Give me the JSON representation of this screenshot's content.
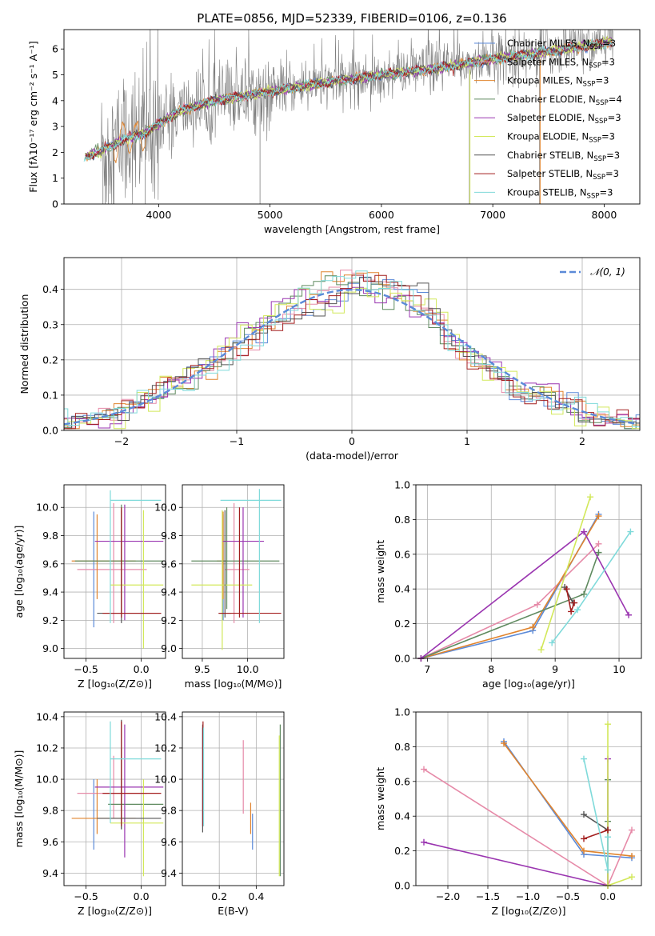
{
  "figure": {
    "title": "PLATE=0856, MJD=52339, FIBERID=0106, z=0.136"
  },
  "colors": {
    "series": [
      "#5b8ad8",
      "#e68aa8",
      "#e0842e",
      "#5f8a5f",
      "#9a35b0",
      "#d2e85a",
      "#555555",
      "#a31e1e",
      "#7fdada"
    ],
    "data": "#7f7f7f",
    "normal": "#5b8ad8",
    "grid": "#b0b0b0"
  },
  "chart_data": [
    {
      "id": "spectrum",
      "type": "line",
      "xlabel": "wavelength [Angstrom, rest frame]",
      "ylabel": "Flux [fλ10⁻¹⁷ erg cm⁻² s⁻¹ A⁻¹]",
      "xlim": [
        3150,
        8320
      ],
      "ylim": [
        0,
        6.75
      ],
      "xticks": [
        4000,
        5000,
        6000,
        7000,
        8000
      ],
      "yticks": [
        0,
        1,
        2,
        3,
        4,
        5,
        6
      ],
      "legend_position": "right",
      "legend": [
        {
          "label": "Chabrier MILES, N",
          "sub": "SSP",
          "suffix": "=3"
        },
        {
          "label": "Salpeter MILES, N",
          "sub": "SSP",
          "suffix": "=3"
        },
        {
          "label": "Kroupa MILES, N",
          "sub": "SSP",
          "suffix": "=3"
        },
        {
          "label": "Chabrier ELODIE, N",
          "sub": "SSP",
          "suffix": "=4"
        },
        {
          "label": "Salpeter ELODIE, N",
          "sub": "SSP",
          "suffix": "=3"
        },
        {
          "label": "Kroupa ELODIE, N",
          "sub": "SSP",
          "suffix": "=3"
        },
        {
          "label": "Chabrier STELIB, N",
          "sub": "SSP",
          "suffix": "=3"
        },
        {
          "label": "Salpeter STELIB, N",
          "sub": "SSP",
          "suffix": "=3"
        },
        {
          "label": "Kroupa STELIB, N",
          "sub": "SSP",
          "suffix": "=3"
        }
      ],
      "model_continuum": {
        "x": [
          3330,
          3500,
          3700,
          3900,
          4000,
          4200,
          4500,
          5000,
          5500,
          6000,
          6500,
          7000,
          7500,
          8000,
          8070
        ],
        "y": [
          1.8,
          2.1,
          2.5,
          2.8,
          3.1,
          3.6,
          4.0,
          4.35,
          4.7,
          5.0,
          5.25,
          5.6,
          5.9,
          6.2,
          6.3
        ]
      }
    },
    {
      "id": "residuals",
      "type": "histogram",
      "xlabel": "(data-model)/error",
      "ylabel": "Normed distribution",
      "xlim": [
        -2.5,
        2.5
      ],
      "ylim": [
        0,
        0.49
      ],
      "xticks": [
        -2,
        -1,
        0,
        1,
        2
      ],
      "yticks": [
        0.0,
        0.1,
        0.2,
        0.3,
        0.4
      ],
      "legend": "𝒩(0, 1)",
      "legend_position": "top-right",
      "bin_width": 0.1
    },
    {
      "id": "age_vs_Z",
      "type": "errorbar",
      "xlabel": "Z [log₁₀(Z/Z⊙)]",
      "ylabel": "age  [log₁₀(age/yr)]",
      "xlim": [
        -0.7,
        0.22
      ],
      "ylim": [
        8.93,
        10.16
      ],
      "xticks": [
        -0.5,
        0.0
      ],
      "yticks": [
        9.0,
        9.2,
        9.4,
        9.6,
        9.8,
        10.0
      ],
      "points": [
        {
          "s": 0,
          "x": -0.43,
          "y": 9.55,
          "xl": -0.43,
          "xh": -0.43,
          "yl": 9.15,
          "yh": 9.97
        },
        {
          "s": 1,
          "x": -0.25,
          "y": 9.56,
          "xl": -0.58,
          "xh": 0.05,
          "yl": 9.18,
          "yh": 10.03
        },
        {
          "s": 2,
          "x": -0.4,
          "y": 9.62,
          "xl": -0.63,
          "xh": -0.05,
          "yl": 9.35,
          "yh": 9.95
        },
        {
          "s": 3,
          "x": -0.18,
          "y": 9.62,
          "xl": -0.6,
          "xh": 0.2,
          "yl": 9.25,
          "yh": 10.02
        },
        {
          "s": 4,
          "x": -0.15,
          "y": 9.76,
          "xl": -0.42,
          "xh": 0.2,
          "yl": 9.2,
          "yh": 10.02
        },
        {
          "s": 5,
          "x": 0.02,
          "y": 9.45,
          "xl": -0.28,
          "xh": 0.2,
          "yl": 9.0,
          "yh": 9.98
        },
        {
          "s": 6,
          "x": -0.18,
          "y": 9.25,
          "xl": -0.4,
          "xh": 0.18,
          "yl": 9.18,
          "yh": 9.98
        },
        {
          "s": 7,
          "x": -0.18,
          "y": 9.25,
          "xl": -0.35,
          "xh": 0.18,
          "yl": 9.22,
          "yh": 10.0
        },
        {
          "s": 8,
          "x": -0.28,
          "y": 10.05,
          "xl": -0.28,
          "xh": 0.18,
          "yl": 9.18,
          "yh": 10.12
        }
      ]
    },
    {
      "id": "age_vs_mass",
      "type": "errorbar",
      "xlabel": "mass [log₁₀(M/M⊙)]",
      "ylabel": "",
      "xlim": [
        9.28,
        10.4
      ],
      "ylim": [
        8.93,
        10.16
      ],
      "xticks": [
        9.5,
        10.0
      ],
      "yticks": [
        9.0,
        9.2,
        9.4,
        9.6,
        9.8,
        10.0
      ],
      "points": [
        {
          "s": 0,
          "x": 9.73,
          "y": 9.6,
          "xl": 9.72,
          "xh": 9.74,
          "yl": 9.2,
          "yh": 9.95
        },
        {
          "s": 1,
          "x": 9.85,
          "y": 9.56,
          "xl": 9.75,
          "xh": 10.02,
          "yl": 9.18,
          "yh": 10.03
        },
        {
          "s": 2,
          "x": 9.73,
          "y": 9.62,
          "xl": 9.66,
          "xh": 9.78,
          "yl": 9.35,
          "yh": 9.97
        },
        {
          "s": 3,
          "x": 9.77,
          "y": 9.62,
          "xl": 9.38,
          "xh": 10.35,
          "yl": 9.28,
          "yh": 10.0
        },
        {
          "s": 4,
          "x": 9.95,
          "y": 9.76,
          "xl": 9.72,
          "xh": 10.18,
          "yl": 9.22,
          "yh": 10.0
        },
        {
          "s": 5,
          "x": 9.72,
          "y": 9.45,
          "xl": 9.38,
          "xh": 10.05,
          "yl": 8.99,
          "yh": 9.98
        },
        {
          "s": 6,
          "x": 9.75,
          "y": 9.25,
          "xl": 9.68,
          "xh": 9.82,
          "yl": 9.22,
          "yh": 9.98
        },
        {
          "s": 7,
          "x": 9.91,
          "y": 9.25,
          "xl": 9.68,
          "xh": 10.37,
          "yl": 9.22,
          "yh": 10.0
        },
        {
          "s": 8,
          "x": 10.13,
          "y": 10.05,
          "xl": 9.7,
          "xh": 10.37,
          "yl": 9.18,
          "yh": 10.13
        }
      ]
    },
    {
      "id": "weight_vs_age",
      "type": "line",
      "xlabel": "age  [log₁₀(age/yr)]",
      "ylabel": "mass weight",
      "xlim": [
        6.82,
        10.35
      ],
      "ylim": [
        0,
        1
      ],
      "xticks": [
        7,
        8,
        9,
        10
      ],
      "yticks": [
        0.0,
        0.2,
        0.4,
        0.6,
        0.8,
        1.0
      ],
      "series": [
        {
          "s": 0,
          "x": [
            6.9,
            8.65,
            9.68
          ],
          "y": [
            0.0,
            0.16,
            0.83
          ]
        },
        {
          "s": 1,
          "x": [
            6.9,
            8.72,
            9.68
          ],
          "y": [
            0.0,
            0.31,
            0.66
          ]
        },
        {
          "s": 2,
          "x": [
            6.9,
            8.65,
            9.68
          ],
          "y": [
            0.0,
            0.18,
            0.82
          ]
        },
        {
          "s": 3,
          "x": [
            6.9,
            9.45,
            9.68
          ],
          "y": [
            0.0,
            0.37,
            0.61
          ]
        },
        {
          "s": 4,
          "x": [
            6.9,
            9.45,
            10.15
          ],
          "y": [
            0.0,
            0.73,
            0.25
          ]
        },
        {
          "s": 5,
          "x": [
            8.78,
            9.55
          ],
          "y": [
            0.05,
            0.93
          ]
        },
        {
          "s": 6,
          "x": [
            9.15,
            9.28
          ],
          "y": [
            0.41,
            0.32
          ]
        },
        {
          "s": 7,
          "x": [
            9.18,
            9.25,
            9.3
          ],
          "y": [
            0.4,
            0.27,
            0.32
          ]
        },
        {
          "s": 8,
          "x": [
            8.95,
            9.35,
            10.18
          ],
          "y": [
            0.09,
            0.28,
            0.73
          ]
        }
      ]
    },
    {
      "id": "mass_vs_Z",
      "type": "errorbar",
      "xlabel": "Z [log₁₀(Z/Z⊙)]",
      "ylabel": "mass [log₁₀(M/M⊙)]",
      "xlim": [
        -0.7,
        0.22
      ],
      "ylim": [
        9.32,
        10.43
      ],
      "xticks": [
        -0.5,
        0.0
      ],
      "yticks": [
        9.4,
        9.6,
        9.8,
        10.0,
        10.2,
        10.4
      ],
      "points": [
        {
          "s": 0,
          "x": -0.43,
          "y": 9.75,
          "xl": -0.43,
          "xh": -0.43,
          "yl": 9.55,
          "yh": 10.0
        },
        {
          "s": 1,
          "x": -0.25,
          "y": 9.91,
          "xl": -0.58,
          "xh": 0.05,
          "yl": 9.75,
          "yh": 10.15
        },
        {
          "s": 2,
          "x": -0.4,
          "y": 9.75,
          "xl": -0.63,
          "xh": -0.05,
          "yl": 9.65,
          "yh": 10.0
        },
        {
          "s": 3,
          "x": -0.18,
          "y": 9.84,
          "xl": -0.3,
          "xh": 0.2,
          "yl": 9.68,
          "yh": 10.2
        },
        {
          "s": 4,
          "x": -0.15,
          "y": 9.95,
          "xl": -0.42,
          "xh": 0.2,
          "yl": 9.5,
          "yh": 10.35
        },
        {
          "s": 5,
          "x": 0.02,
          "y": 9.72,
          "xl": -0.28,
          "xh": 0.2,
          "yl": 9.38,
          "yh": 10.0
        },
        {
          "s": 6,
          "x": -0.18,
          "y": 9.75,
          "xl": -0.4,
          "xh": 0.18,
          "yl": 9.68,
          "yh": 10.38
        },
        {
          "s": 7,
          "x": -0.18,
          "y": 9.91,
          "xl": -0.35,
          "xh": 0.18,
          "yl": 9.7,
          "yh": 10.37
        },
        {
          "s": 8,
          "x": -0.28,
          "y": 10.13,
          "xl": -0.28,
          "xh": 0.18,
          "yl": 9.72,
          "yh": 10.37
        }
      ]
    },
    {
      "id": "mass_vs_ebv",
      "type": "errorbar",
      "xlabel": "E(B-V)",
      "ylabel": "",
      "xlim": [
        0.0,
        0.55
      ],
      "ylim": [
        9.32,
        10.43
      ],
      "xticks": [
        0.2,
        0.4
      ],
      "yticks": [
        9.4,
        9.6,
        9.8,
        10.0,
        10.2,
        10.4
      ],
      "points": [
        {
          "s": 0,
          "x": 0.38,
          "y": 9.72,
          "xl": 0.38,
          "xh": 0.38,
          "yl": 9.55,
          "yh": 9.78
        },
        {
          "s": 1,
          "x": 0.33,
          "y": 10.0,
          "xl": 0.33,
          "xh": 0.33,
          "yl": 9.78,
          "yh": 10.25
        },
        {
          "s": 2,
          "x": 0.37,
          "y": 9.75,
          "xl": 0.37,
          "xh": 0.37,
          "yl": 9.65,
          "yh": 9.85
        },
        {
          "s": 3,
          "x": 0.53,
          "y": 9.85,
          "xl": 0.53,
          "xh": 0.53,
          "yl": 9.38,
          "yh": 10.35
        },
        {
          "s": 4,
          "x": 0.11,
          "y": 10.0,
          "xl": 0.11,
          "xh": 0.11,
          "yl": 9.7,
          "yh": 10.33
        },
        {
          "s": 5,
          "x": 0.525,
          "y": 9.8,
          "xl": 0.525,
          "xh": 0.525,
          "yl": 9.38,
          "yh": 10.28
        },
        {
          "s": 6,
          "x": 0.11,
          "y": 10.0,
          "xl": 0.11,
          "xh": 0.11,
          "yl": 9.66,
          "yh": 10.35
        },
        {
          "s": 7,
          "x": 0.112,
          "y": 10.05,
          "xl": 0.112,
          "xh": 0.112,
          "yl": 9.7,
          "yh": 10.37
        },
        {
          "s": 8,
          "x": 0.115,
          "y": 10.0,
          "xl": 0.115,
          "xh": 0.115,
          "yl": 9.7,
          "yh": 10.33
        }
      ]
    },
    {
      "id": "weight_vs_Z",
      "type": "line",
      "xlabel": "Z [log₁₀(Z/Z⊙)]",
      "ylabel": "mass weight",
      "xlim": [
        -2.4,
        0.42
      ],
      "ylim": [
        0,
        1
      ],
      "xticks": [
        -2.0,
        -1.5,
        -1.0,
        -0.5,
        0.0
      ],
      "yticks": [
        0.0,
        0.2,
        0.4,
        0.6,
        0.8,
        1.0
      ],
      "series": [
        {
          "s": 0,
          "x": [
            -1.3,
            -0.3,
            0.3
          ],
          "y": [
            0.83,
            0.18,
            0.16
          ]
        },
        {
          "s": 1,
          "x": [
            -2.3,
            0.0,
            0.3
          ],
          "y": [
            0.67,
            0.0,
            0.32
          ]
        },
        {
          "s": 2,
          "x": [
            -1.3,
            -0.3,
            0.3
          ],
          "y": [
            0.82,
            0.2,
            0.17
          ]
        },
        {
          "s": 3,
          "x": [
            0.0,
            0.0,
            0.0
          ],
          "y": [
            0.61,
            0.37,
            0.0
          ]
        },
        {
          "s": 4,
          "x": [
            -2.3,
            0.0,
            0.0
          ],
          "y": [
            0.25,
            0.0,
            0.73
          ]
        },
        {
          "s": 5,
          "x": [
            0.0,
            0.0,
            0.3
          ],
          "y": [
            0.93,
            0.0,
            0.05
          ]
        },
        {
          "s": 6,
          "x": [
            -0.3,
            0.0
          ],
          "y": [
            0.41,
            0.32
          ]
        },
        {
          "s": 7,
          "x": [
            -0.3,
            0.0
          ],
          "y": [
            0.27,
            0.32
          ]
        },
        {
          "s": 8,
          "x": [
            -0.3,
            0.0,
            0.0
          ],
          "y": [
            0.73,
            0.09,
            0.28
          ]
        }
      ]
    }
  ]
}
